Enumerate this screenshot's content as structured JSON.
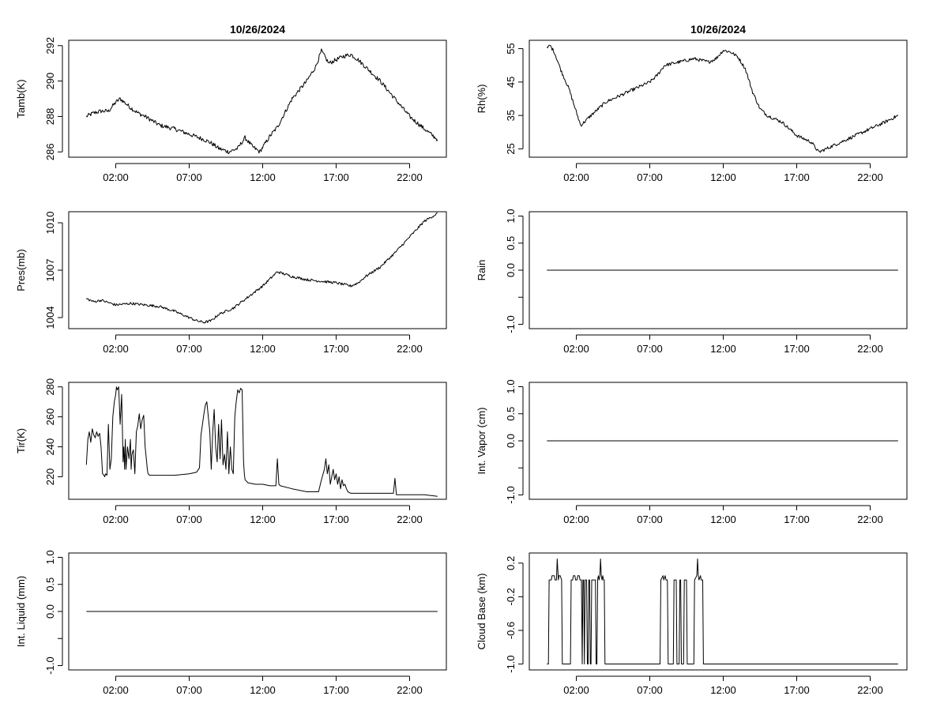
{
  "chart_data": [
    {
      "type": "line",
      "title": "10/26/2024",
      "xlabel": "",
      "ylabel": "Tamb(K)",
      "xlim": [
        -1.2,
        24.5
      ],
      "ylim": [
        285.7,
        292.3
      ],
      "yticks": [
        286,
        288,
        290,
        292
      ],
      "ytick_labels": [
        "286",
        "288",
        "290",
        "292"
      ],
      "xticks": [
        2,
        7,
        12,
        17,
        22
      ],
      "xtick_labels": [
        "02:00",
        "07:00",
        "12:00",
        "17:00",
        "22:00"
      ],
      "series": [
        {
          "name": "Tamb",
          "noise": 0.12,
          "x": [
            0,
            0.5,
            1,
            1.5,
            2,
            2.3,
            3,
            3.5,
            4,
            5,
            6,
            7,
            8,
            8.5,
            9,
            9.7,
            10.3,
            10.8,
            11.3,
            11.8,
            12.5,
            13,
            14,
            15,
            15.6,
            16,
            16.5,
            17,
            17.5,
            18,
            18.5,
            19,
            20,
            21,
            22,
            23,
            23.9
          ],
          "y": [
            288.0,
            288.2,
            288.3,
            288.3,
            288.8,
            289.0,
            288.5,
            288.2,
            288.0,
            287.5,
            287.3,
            287.0,
            286.7,
            286.5,
            286.2,
            286.0,
            286.2,
            286.8,
            286.3,
            286.0,
            286.9,
            287.4,
            289.0,
            290.0,
            290.8,
            291.7,
            291.0,
            291.2,
            291.4,
            291.5,
            291.2,
            290.8,
            290.0,
            289.0,
            288.0,
            287.3,
            286.7
          ]
        }
      ]
    },
    {
      "type": "line",
      "title": "10/26/2024",
      "xlabel": "",
      "ylabel": "Rh(%)",
      "xlim": [
        -1.2,
        24.5
      ],
      "ylim": [
        22.5,
        57.5
      ],
      "yticks": [
        25,
        35,
        45,
        55
      ],
      "ytick_labels": [
        "25",
        "35",
        "45",
        "55"
      ],
      "xticks": [
        2,
        7,
        12,
        17,
        22
      ],
      "xtick_labels": [
        "02:00",
        "07:00",
        "12:00",
        "17:00",
        "22:00"
      ],
      "series": [
        {
          "name": "Rh",
          "noise": 0.5,
          "x": [
            0,
            0.2,
            0.5,
            1,
            1.5,
            2,
            2.3,
            3,
            4,
            5,
            6,
            7,
            7.5,
            8,
            8.5,
            9,
            10,
            10.5,
            11,
            11.5,
            12,
            12.5,
            13,
            13.5,
            14,
            14.5,
            15,
            16,
            17,
            17.5,
            18,
            18.5,
            19,
            20,
            21,
            22,
            23,
            23.9
          ],
          "y": [
            55.0,
            56.0,
            54.0,
            48.0,
            43.0,
            36.0,
            32.0,
            35.0,
            39.0,
            41.0,
            43.0,
            45.0,
            47.0,
            50.0,
            50.5,
            51.0,
            52.0,
            51.5,
            51.0,
            52.0,
            54.5,
            54.0,
            52.5,
            49.0,
            42.0,
            37.0,
            35.0,
            33.0,
            29.0,
            28.0,
            27.0,
            24.0,
            25.0,
            27.0,
            29.0,
            31.0,
            33.0,
            35.0
          ]
        }
      ]
    },
    {
      "type": "line",
      "title": "",
      "xlabel": "",
      "ylabel": "Pres(mb)",
      "xlim": [
        -1.2,
        24.5
      ],
      "ylim": [
        1003.3,
        1010.7
      ],
      "yticks": [
        1004,
        1007,
        1010
      ],
      "ytick_labels": [
        "1004",
        "1007",
        "1010"
      ],
      "xticks": [
        2,
        7,
        12,
        17,
        22
      ],
      "xtick_labels": [
        "02:00",
        "07:00",
        "12:00",
        "17:00",
        "22:00"
      ],
      "series": [
        {
          "name": "Pres",
          "noise": 0.08,
          "x": [
            0,
            0.5,
            1,
            2,
            3,
            4,
            5,
            6,
            7,
            7.5,
            8,
            8.5,
            9,
            10,
            11,
            12,
            13,
            14,
            15,
            16,
            17,
            18,
            18.5,
            19,
            20,
            21,
            22,
            23,
            23.9
          ],
          "y": [
            1005.2,
            1005.0,
            1005.1,
            1004.8,
            1004.9,
            1004.8,
            1004.7,
            1004.4,
            1004.0,
            1003.8,
            1003.7,
            1003.8,
            1004.2,
            1004.6,
            1005.3,
            1006.0,
            1006.9,
            1006.6,
            1006.4,
            1006.3,
            1006.2,
            1006.0,
            1006.2,
            1006.6,
            1007.2,
            1008.1,
            1009.1,
            1010.1,
            1010.6
          ]
        }
      ]
    },
    {
      "type": "line",
      "title": "",
      "xlabel": "",
      "ylabel": "Rain",
      "xlim": [
        -1.2,
        24.5
      ],
      "ylim": [
        -1.08,
        1.08
      ],
      "yticks": [
        -1.0,
        -0.5,
        0.0,
        0.5,
        1.0
      ],
      "ytick_labels": [
        "-1.0",
        "",
        "0.0",
        "0.5",
        "1.0"
      ],
      "xticks": [
        2,
        7,
        12,
        17,
        22
      ],
      "xtick_labels": [
        "02:00",
        "07:00",
        "12:00",
        "17:00",
        "22:00"
      ],
      "series": [
        {
          "name": "Rain",
          "noise": 0,
          "x": [
            0,
            23.9
          ],
          "y": [
            0,
            0
          ]
        }
      ]
    },
    {
      "type": "line",
      "title": "",
      "xlabel": "",
      "ylabel": "Tir(K)",
      "xlim": [
        -1.2,
        24.5
      ],
      "ylim": [
        205,
        283
      ],
      "yticks": [
        220,
        240,
        260,
        280
      ],
      "ytick_labels": [
        "220",
        "240",
        "260",
        "280"
      ],
      "xticks": [
        2,
        7,
        12,
        17,
        22
      ],
      "xtick_labels": [
        "02:00",
        "07:00",
        "12:00",
        "17:00",
        "22:00"
      ],
      "series": [
        {
          "name": "Tir",
          "noise": 0,
          "x": [
            0,
            0.1,
            0.2,
            0.3,
            0.4,
            0.5,
            0.6,
            0.7,
            0.8,
            0.9,
            1.0,
            1.1,
            1.2,
            1.25,
            1.3,
            1.4,
            1.5,
            1.6,
            1.7,
            1.8,
            1.9,
            2.0,
            2.05,
            2.1,
            2.2,
            2.3,
            2.4,
            2.5,
            2.55,
            2.6,
            2.65,
            2.7,
            2.8,
            2.9,
            3.0,
            3.05,
            3.1,
            3.2,
            3.3,
            3.4,
            3.5,
            3.55,
            3.6,
            3.7,
            3.8,
            3.9,
            4.0,
            4.1,
            4.15,
            4.2,
            4.3,
            4.5,
            5.0,
            6.0,
            7.0,
            7.5,
            7.7,
            7.8,
            7.9,
            8.0,
            8.1,
            8.2,
            8.3,
            8.4,
            8.5,
            8.6,
            8.7,
            8.8,
            8.9,
            9.0,
            9.1,
            9.2,
            9.3,
            9.4,
            9.5,
            9.6,
            9.7,
            9.8,
            9.9,
            10.0,
            10.1,
            10.2,
            10.3,
            10.4,
            10.5,
            10.6,
            10.7,
            10.75,
            10.8,
            10.9,
            11.0,
            11.5,
            12.0,
            12.5,
            12.9,
            13.0,
            13.1,
            13.2,
            14.0,
            15.0,
            15.8,
            16.0,
            16.2,
            16.3,
            16.4,
            16.5,
            16.6,
            16.7,
            16.8,
            16.9,
            17.0,
            17.1,
            17.2,
            17.3,
            17.4,
            17.5,
            17.6,
            17.7,
            17.8,
            18.0,
            19.0,
            20.0,
            20.9,
            21.0,
            21.1,
            22.0,
            23.0,
            23.9
          ],
          "y": [
            228,
            245,
            250,
            243,
            252,
            248,
            246,
            250,
            247,
            249,
            240,
            222,
            221,
            220,
            222,
            221,
            255,
            225,
            232,
            260,
            270,
            275,
            280,
            278,
            280,
            255,
            275,
            230,
            240,
            225,
            245,
            225,
            240,
            232,
            245,
            225,
            235,
            238,
            222,
            250,
            254,
            258,
            262,
            252,
            258,
            261,
            240,
            230,
            225,
            222,
            221,
            221,
            221,
            221,
            222,
            223,
            226,
            248,
            255,
            262,
            268,
            270,
            260,
            250,
            225,
            250,
            265,
            240,
            230,
            255,
            232,
            258,
            228,
            235,
            225,
            250,
            222,
            240,
            225,
            222,
            260,
            270,
            278,
            276,
            279,
            278,
            230,
            222,
            218,
            217,
            216,
            215,
            215,
            214,
            214,
            232,
            215,
            214,
            212,
            210,
            210,
            218,
            225,
            232,
            222,
            228,
            215,
            220,
            225,
            218,
            222,
            215,
            220,
            212,
            218,
            214,
            215,
            212,
            210,
            209,
            209,
            209,
            209,
            219,
            208,
            208,
            208,
            207
          ]
        }
      ]
    },
    {
      "type": "line",
      "title": "",
      "xlabel": "",
      "ylabel": "Int. Vapor (cm)",
      "xlim": [
        -1.2,
        24.5
      ],
      "ylim": [
        -1.08,
        1.08
      ],
      "yticks": [
        -1.0,
        -0.5,
        0.0,
        0.5,
        1.0
      ],
      "ytick_labels": [
        "-1.0",
        "",
        "0.0",
        "0.5",
        "1.0"
      ],
      "xticks": [
        2,
        7,
        12,
        17,
        22
      ],
      "xtick_labels": [
        "02:00",
        "07:00",
        "12:00",
        "17:00",
        "22:00"
      ],
      "series": [
        {
          "name": "Int. Vapor",
          "noise": 0,
          "x": [
            0,
            23.9
          ],
          "y": [
            0,
            0
          ]
        }
      ]
    },
    {
      "type": "line",
      "title": "",
      "xlabel": "",
      "ylabel": "Int. Liquid (mm)",
      "xlim": [
        -1.2,
        24.5
      ],
      "ylim": [
        -1.08,
        1.08
      ],
      "yticks": [
        -1.0,
        -0.5,
        0.0,
        0.5,
        1.0
      ],
      "ytick_labels": [
        "-1.0",
        "",
        "0.0",
        "0.5",
        "1.0"
      ],
      "xticks": [
        2,
        7,
        12,
        17,
        22
      ],
      "xtick_labels": [
        "02:00",
        "07:00",
        "12:00",
        "17:00",
        "22:00"
      ],
      "series": [
        {
          "name": "Int. Liquid",
          "noise": 0,
          "x": [
            0,
            23.9
          ],
          "y": [
            0,
            0
          ]
        }
      ]
    },
    {
      "type": "line",
      "title": "",
      "xlabel": "",
      "ylabel": "Cloud Base (km)",
      "xlim": [
        -1.2,
        24.5
      ],
      "ylim": [
        -1.07,
        0.32
      ],
      "yticks": [
        -1.0,
        -0.6,
        -0.2,
        0.2
      ],
      "ytick_labels": [
        "-1.0",
        "-0.6",
        "-0.2",
        "0.2"
      ],
      "xticks": [
        2,
        7,
        12,
        17,
        22
      ],
      "xtick_labels": [
        "02:00",
        "07:00",
        "12:00",
        "17:00",
        "22:00"
      ],
      "series": [
        {
          "name": "Cloud Base",
          "noise": 0,
          "x": [
            0,
            0.1,
            0.15,
            0.3,
            0.35,
            0.5,
            0.55,
            0.65,
            0.7,
            0.78,
            0.82,
            0.9,
            1.0,
            1.05,
            1.1,
            1.6,
            1.65,
            1.75,
            1.8,
            1.9,
            1.95,
            2.05,
            2.1,
            2.2,
            2.25,
            2.35,
            2.4,
            2.45,
            2.5,
            2.55,
            2.6,
            2.7,
            2.75,
            2.8,
            2.85,
            2.9,
            2.95,
            3.0,
            3.05,
            3.3,
            3.35,
            3.4,
            3.45,
            3.5,
            3.55,
            3.6,
            3.65,
            3.7,
            3.75,
            3.8,
            3.85,
            3.9,
            3.95,
            4.0,
            4.05,
            4.1,
            4.15,
            7.7,
            7.75,
            7.9,
            7.95,
            8.05,
            8.1,
            8.2,
            8.25,
            8.6,
            8.65,
            8.8,
            8.85,
            9.0,
            9.05,
            9.1,
            9.15,
            9.3,
            9.35,
            9.5,
            9.55,
            10.0,
            10.05,
            10.2,
            10.25,
            10.3,
            10.35,
            10.45,
            10.5,
            10.6,
            10.65,
            10.75,
            10.8,
            23.9
          ],
          "y": [
            -1.0,
            -1.0,
            0.0,
            0.0,
            0.05,
            0.05,
            0.0,
            0.0,
            0.25,
            0.0,
            0.05,
            0.05,
            0.0,
            -1.0,
            -1.0,
            -1.0,
            0.0,
            0.0,
            0.05,
            0.05,
            0.0,
            0.0,
            0.05,
            0.05,
            0.0,
            0.0,
            -1.0,
            0.0,
            0.0,
            -1.0,
            0.0,
            0.0,
            -1.0,
            -1.0,
            0.0,
            0.0,
            -1.0,
            -1.0,
            0.0,
            0.0,
            -1.0,
            -1.0,
            0.0,
            0.05,
            0.0,
            0.05,
            0.25,
            0.05,
            0.0,
            0.05,
            0.0,
            0.0,
            -1.0,
            -1.0,
            -1.0,
            -1.0,
            -1.0,
            -1.0,
            0.0,
            0.05,
            0.0,
            0.05,
            0.0,
            0.0,
            -1.0,
            -1.0,
            0.0,
            0.0,
            -1.0,
            -1.0,
            0.0,
            0.0,
            -1.0,
            -1.0,
            0.0,
            0.0,
            -1.0,
            -1.0,
            0.0,
            0.05,
            0.25,
            0.05,
            0.0,
            0.05,
            0.0,
            0.0,
            -1.0,
            -1.0,
            -1.0,
            -1.0
          ]
        }
      ]
    }
  ]
}
